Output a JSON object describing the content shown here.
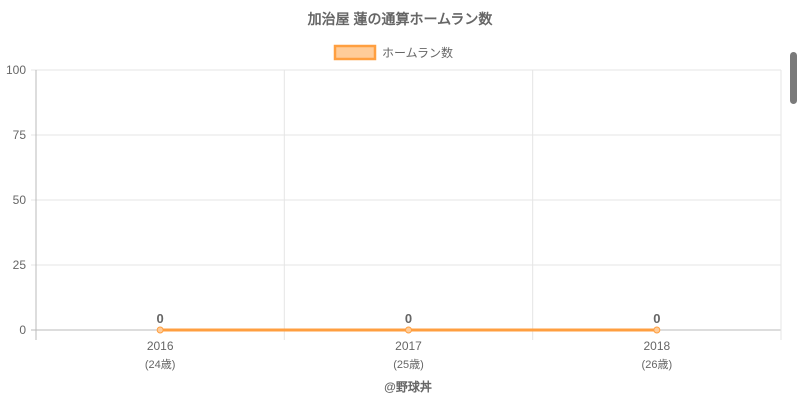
{
  "chart_data": {
    "type": "line",
    "title": "加治屋 蓮の通算ホームラン数",
    "categories": [
      "2016",
      "2017",
      "2018"
    ],
    "category_sublabels": [
      "(24歳)",
      "(25歳)",
      "(26歳)"
    ],
    "series": [
      {
        "name": "ホームラン数",
        "values": [
          0,
          0,
          0
        ],
        "color": "#ff9f40",
        "fill": "#ffcc99"
      }
    ],
    "data_labels": [
      "0",
      "0",
      "0"
    ],
    "ylim": [
      0,
      100
    ],
    "yticks": [
      "0",
      "25",
      "50",
      "75",
      "100"
    ],
    "grid": true,
    "legend": "top",
    "credit": "@野球丼"
  }
}
